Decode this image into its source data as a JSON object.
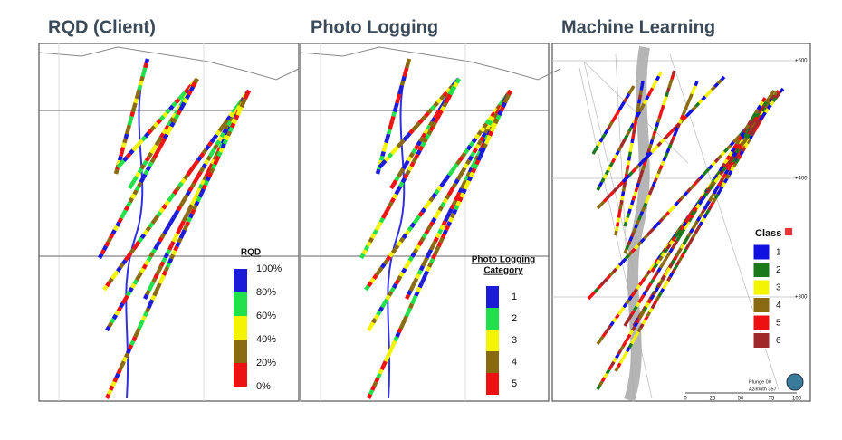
{
  "panels": [
    {
      "title": "RQD (Client)",
      "legend": {
        "title": "RQD",
        "labels": [
          "100%",
          "80%",
          "60%",
          "40%",
          "20%",
          "0%"
        ],
        "colors": [
          "#1c1cd8",
          "#22e04a",
          "#f4f400",
          "#8a6a10",
          "#ee1111"
        ]
      }
    },
    {
      "title": "Photo Logging",
      "legend": {
        "title_lines": [
          "Photo Logging",
          "Category"
        ],
        "labels": [
          "1",
          "2",
          "3",
          "4",
          "5"
        ],
        "colors": [
          "#1c1cd8",
          "#22e04a",
          "#f4f400",
          "#8a6a10",
          "#ee1111"
        ]
      }
    },
    {
      "title": "Machine Learning",
      "legend": {
        "title": "Class",
        "labels": [
          "1",
          "2",
          "3",
          "4",
          "5",
          "6"
        ],
        "colors": [
          "#1010e0",
          "#1a7a1a",
          "#f4f400",
          "#8a6a10",
          "#ee1111",
          "#a02828"
        ]
      },
      "axis_labels": [
        "+500",
        "+400",
        "+300"
      ],
      "view_info": [
        "Plunge 00",
        "Azimuth 357"
      ],
      "scale_labels": [
        "0",
        "25",
        "50",
        "75",
        "100"
      ]
    }
  ]
}
